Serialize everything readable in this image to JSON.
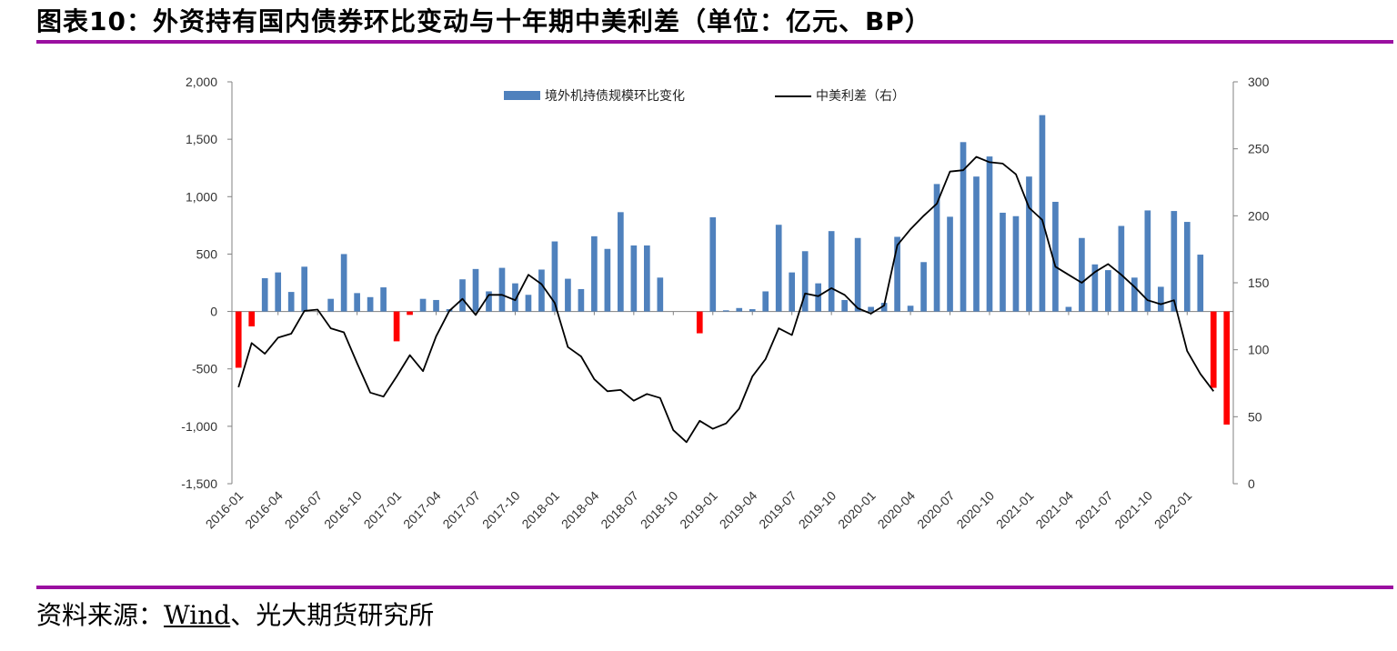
{
  "header": {
    "title": "图表10：外资持有国内债券环比变动与十年期中美利差（单位：亿元、BP）"
  },
  "footer": {
    "source_label": "资料来源：",
    "source_link": "Wind",
    "source_rest": "、光大期货研究所"
  },
  "colors": {
    "accent_rule": "#9a0fa0",
    "bar_positive": "#4f81bd",
    "bar_negative": "#ff0000",
    "line": "#000000",
    "axis": "#808080"
  },
  "chart_data": {
    "type": "bar",
    "title": "",
    "legend": [
      "境外机持债规模环比变化",
      "中美利差（右）"
    ],
    "x_tick_labels": [
      "2016-01",
      "2016-04",
      "2016-07",
      "2016-10",
      "2017-01",
      "2017-04",
      "2017-07",
      "2017-10",
      "2018-01",
      "2018-04",
      "2018-07",
      "2018-10",
      "2019-01",
      "2019-04",
      "2019-07",
      "2019-10",
      "2020-01",
      "2020-04",
      "2020-07",
      "2020-10",
      "2021-01",
      "2021-04",
      "2021-07",
      "2021-10",
      "2022-01"
    ],
    "y_left": {
      "min": -1500,
      "max": 2000,
      "step": 500,
      "tick_labels": [
        "-1,500",
        "-1,000",
        "-500",
        "0",
        "500",
        "1,000",
        "1,500",
        "2,000"
      ]
    },
    "y_right": {
      "min": 0,
      "max": 300,
      "step": 50,
      "tick_labels": [
        "0",
        "50",
        "100",
        "150",
        "200",
        "250",
        "300"
      ]
    },
    "series": [
      {
        "name": "境外机持债规模环比变化",
        "axis": "left",
        "type": "bar",
        "values": [
          -490,
          -130,
          290,
          340,
          170,
          390,
          0,
          110,
          500,
          160,
          125,
          210,
          -260,
          -30,
          110,
          100,
          20,
          280,
          370,
          175,
          380,
          245,
          145,
          365,
          610,
          285,
          195,
          655,
          545,
          865,
          575,
          575,
          295,
          0,
          0,
          -190,
          820,
          10,
          30,
          20,
          175,
          755,
          340,
          525,
          245,
          700,
          100,
          640,
          40,
          75,
          650,
          50,
          430,
          1110,
          825,
          1475,
          1175,
          1350,
          860,
          830,
          1175,
          1710,
          955,
          40,
          640,
          410,
          360,
          745,
          295,
          880,
          215,
          875,
          780,
          495,
          -665,
          -985
        ]
      },
      {
        "name": "中美利差（右）",
        "axis": "right",
        "type": "line",
        "values": [
          72,
          105,
          97,
          109,
          112,
          129,
          130,
          116,
          113,
          90,
          68,
          65,
          80,
          96,
          84,
          110,
          129,
          138,
          126,
          141,
          141,
          137,
          156,
          149,
          135,
          102,
          95,
          78,
          69,
          70,
          62,
          67,
          64,
          40,
          31,
          47,
          41,
          45,
          56,
          80,
          93,
          116,
          111,
          142,
          140,
          146,
          141,
          131,
          127,
          133,
          178,
          190,
          200,
          209,
          233,
          234,
          244,
          240,
          239,
          231,
          206,
          197,
          162,
          156,
          150,
          158,
          164,
          156,
          147,
          137,
          134,
          137,
          99,
          82,
          69
        ]
      }
    ]
  }
}
